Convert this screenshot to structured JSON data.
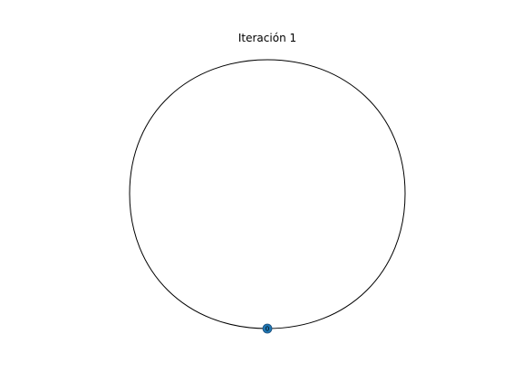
{
  "figure": {
    "title": "Iteración 1"
  },
  "graph": {
    "nodes": [
      {
        "label": "0",
        "color": "#1f77b4"
      }
    ],
    "edges": [
      {
        "source": "0",
        "target": "0",
        "type": "self-loop",
        "color": "#000000"
      }
    ]
  }
}
